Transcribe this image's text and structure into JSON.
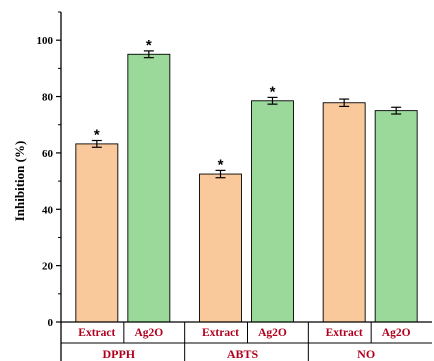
{
  "chart_data": {
    "type": "bar",
    "title": "",
    "xlabel": "",
    "ylabel": "Inhibition (%)",
    "ylim": [
      0,
      110
    ],
    "yticks": [
      0,
      20,
      40,
      60,
      80,
      100
    ],
    "grid": false,
    "legend": "none",
    "groups": [
      {
        "name": "DPPH",
        "bars": [
          {
            "category": "Extract",
            "value": 63.2,
            "error": 1.2,
            "significant": true,
            "color": "#f9c89b"
          },
          {
            "category": "Ag2O",
            "value": 95.0,
            "error": 1.2,
            "significant": true,
            "color": "#9ad99a"
          }
        ]
      },
      {
        "name": "ABTS",
        "bars": [
          {
            "category": "Extract",
            "value": 52.5,
            "error": 1.3,
            "significant": true,
            "color": "#f9c89b"
          },
          {
            "category": "Ag2O",
            "value": 78.5,
            "error": 1.2,
            "significant": true,
            "color": "#9ad99a"
          }
        ]
      },
      {
        "name": "NO",
        "bars": [
          {
            "category": "Extract",
            "value": 77.8,
            "error": 1.3,
            "significant": false,
            "color": "#f9c89b"
          },
          {
            "category": "Ag2O",
            "value": 75.0,
            "error": 1.2,
            "significant": false,
            "color": "#9ad99a"
          }
        ]
      }
    ],
    "annotation_symbol": "*",
    "label_color": "#b0001e"
  }
}
